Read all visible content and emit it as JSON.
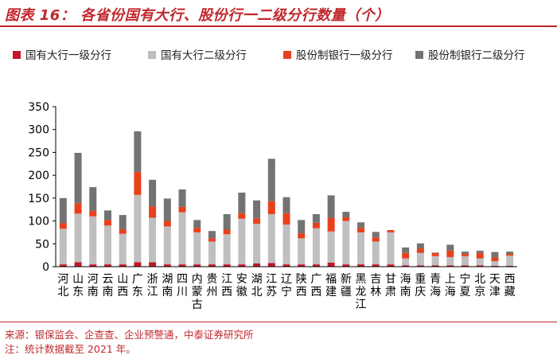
{
  "title": "图表 16： 各省份国有大行、股份行一二级分行数量（个）",
  "footer": {
    "source": "来源：银保监会、企查查、企业预警通，中泰证券研究所",
    "note": "注：统计数据截至 2021 年。"
  },
  "chart_data": {
    "type": "bar",
    "stacked": true,
    "title": "各省份国有大行、股份行一二级分行数量（个）",
    "xlabel": "",
    "ylabel": "",
    "ylim": [
      0,
      350
    ],
    "yticks": [
      0,
      50,
      100,
      150,
      200,
      250,
      300,
      350
    ],
    "grid": false,
    "legend_position": "top",
    "categories": [
      "河北",
      "山东",
      "河南",
      "云南",
      "山西",
      "广东",
      "浙江",
      "湖南",
      "四川",
      "内蒙古",
      "贵州",
      "江西",
      "安徽",
      "湖北",
      "江苏",
      "辽宁",
      "陕西",
      "广西",
      "福建",
      "新疆",
      "黑龙江",
      "吉林",
      "甘肃",
      "海南",
      "重庆",
      "青海",
      "上海",
      "宁夏",
      "北京",
      "天津",
      "西藏"
    ],
    "series": [
      {
        "name": "国有大行一级分行",
        "color": "#c0182a",
        "values": [
          5,
          10,
          5,
          5,
          5,
          10,
          10,
          5,
          5,
          5,
          5,
          5,
          5,
          7,
          8,
          5,
          5,
          5,
          9,
          5,
          5,
          5,
          5,
          3,
          3,
          3,
          3,
          3,
          3,
          2,
          2
        ]
      },
      {
        "name": "国有大行二级分行",
        "color": "#bfbfbf",
        "values": [
          78,
          106,
          105,
          85,
          67,
          147,
          97,
          83,
          114,
          70,
          50,
          66,
          100,
          87,
          107,
          87,
          57,
          79,
          68,
          95,
          70,
          50,
          70,
          15,
          27,
          20,
          18,
          20,
          15,
          10,
          22
        ]
      },
      {
        "name": "股份制银行一级分行",
        "color": "#e8401c",
        "values": [
          12,
          23,
          12,
          12,
          10,
          50,
          25,
          12,
          12,
          10,
          7,
          10,
          12,
          12,
          28,
          25,
          11,
          12,
          30,
          8,
          10,
          9,
          5,
          12,
          10,
          7,
          14,
          5,
          12,
          8,
          4
        ]
      },
      {
        "name": "股份制银行二级分行",
        "color": "#737373",
        "values": [
          55,
          110,
          52,
          21,
          31,
          89,
          58,
          49,
          38,
          17,
          16,
          34,
          45,
          39,
          93,
          35,
          29,
          19,
          49,
          12,
          12,
          12,
          0,
          12,
          11,
          1,
          13,
          5,
          5,
          12,
          5
        ]
      }
    ]
  }
}
